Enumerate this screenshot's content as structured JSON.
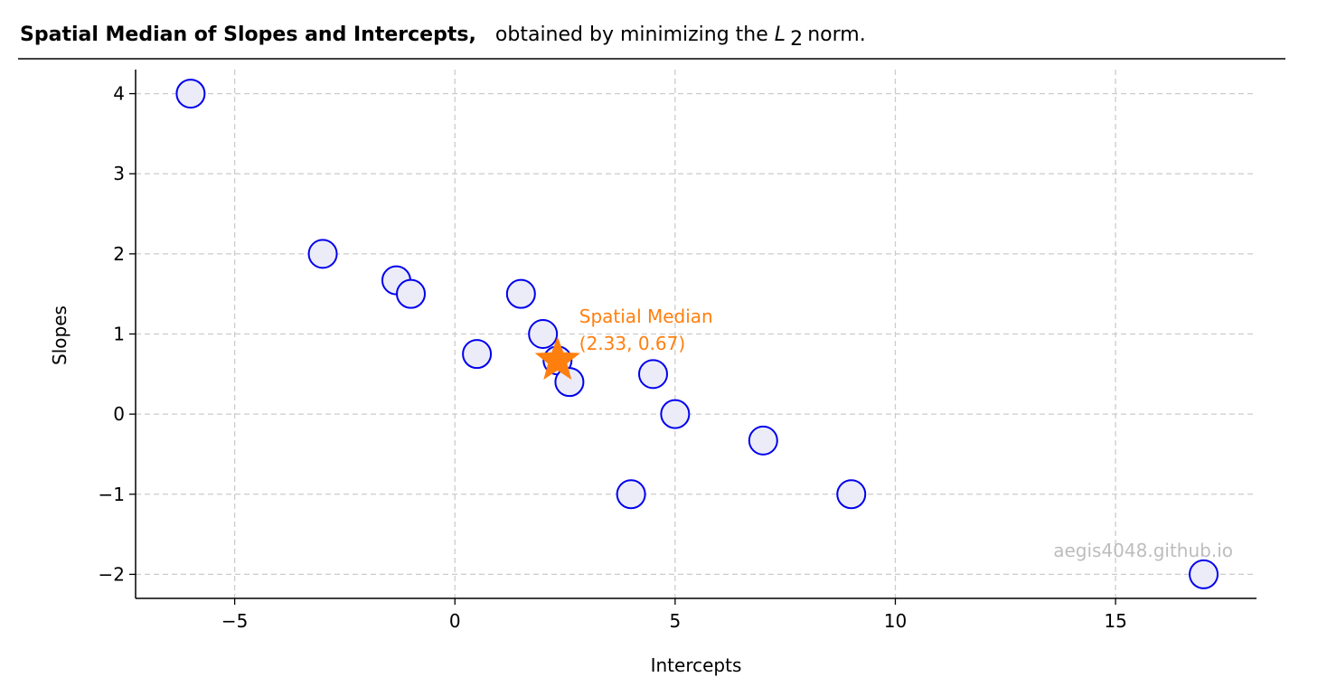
{
  "chart_data": {
    "type": "scatter",
    "title": {
      "bold": "Spatial Median of Slopes and Intercepts,",
      "normal_before": "obtained by minimizing the ",
      "math_symbol": "L",
      "math_subscript": "2",
      "normal_after": " norm."
    },
    "xlabel": "Intercepts",
    "ylabel": "Slopes",
    "xlim": [
      -7.25,
      18.2
    ],
    "ylim": [
      -2.3,
      4.3
    ],
    "xticks": [
      {
        "value": -5,
        "label": "−5"
      },
      {
        "value": 0,
        "label": "0"
      },
      {
        "value": 5,
        "label": "5"
      },
      {
        "value": 10,
        "label": "10"
      },
      {
        "value": 15,
        "label": "15"
      }
    ],
    "yticks": [
      {
        "value": -2,
        "label": "−2"
      },
      {
        "value": -1,
        "label": "−1"
      },
      {
        "value": 0,
        "label": "0"
      },
      {
        "value": 1,
        "label": "1"
      },
      {
        "value": 2,
        "label": "2"
      },
      {
        "value": 3,
        "label": "3"
      },
      {
        "value": 4,
        "label": "4"
      }
    ],
    "grid": true,
    "points": [
      {
        "x": -6,
        "y": 4
      },
      {
        "x": -3,
        "y": 2
      },
      {
        "x": -1.33,
        "y": 1.67
      },
      {
        "x": -1,
        "y": 1.5
      },
      {
        "x": 0.5,
        "y": 0.75
      },
      {
        "x": 1.5,
        "y": 1.5
      },
      {
        "x": 2,
        "y": 1
      },
      {
        "x": 2.33,
        "y": 0.67
      },
      {
        "x": 2.6,
        "y": 0.4
      },
      {
        "x": 4.5,
        "y": 0.5
      },
      {
        "x": 5,
        "y": 0
      },
      {
        "x": 4,
        "y": -1
      },
      {
        "x": 7,
        "y": -0.33
      },
      {
        "x": 9,
        "y": -1
      },
      {
        "x": 17,
        "y": -2
      }
    ],
    "point_style": {
      "edge_color": "#0000ee",
      "fill_color": "#ececf8"
    },
    "median": {
      "x": 2.33,
      "y": 0.67,
      "color": "#ff7f0e",
      "label_line1": "Spatial Median",
      "label_line2": "(2.33, 0.67)"
    },
    "watermark": "aegis4048.github.io"
  }
}
